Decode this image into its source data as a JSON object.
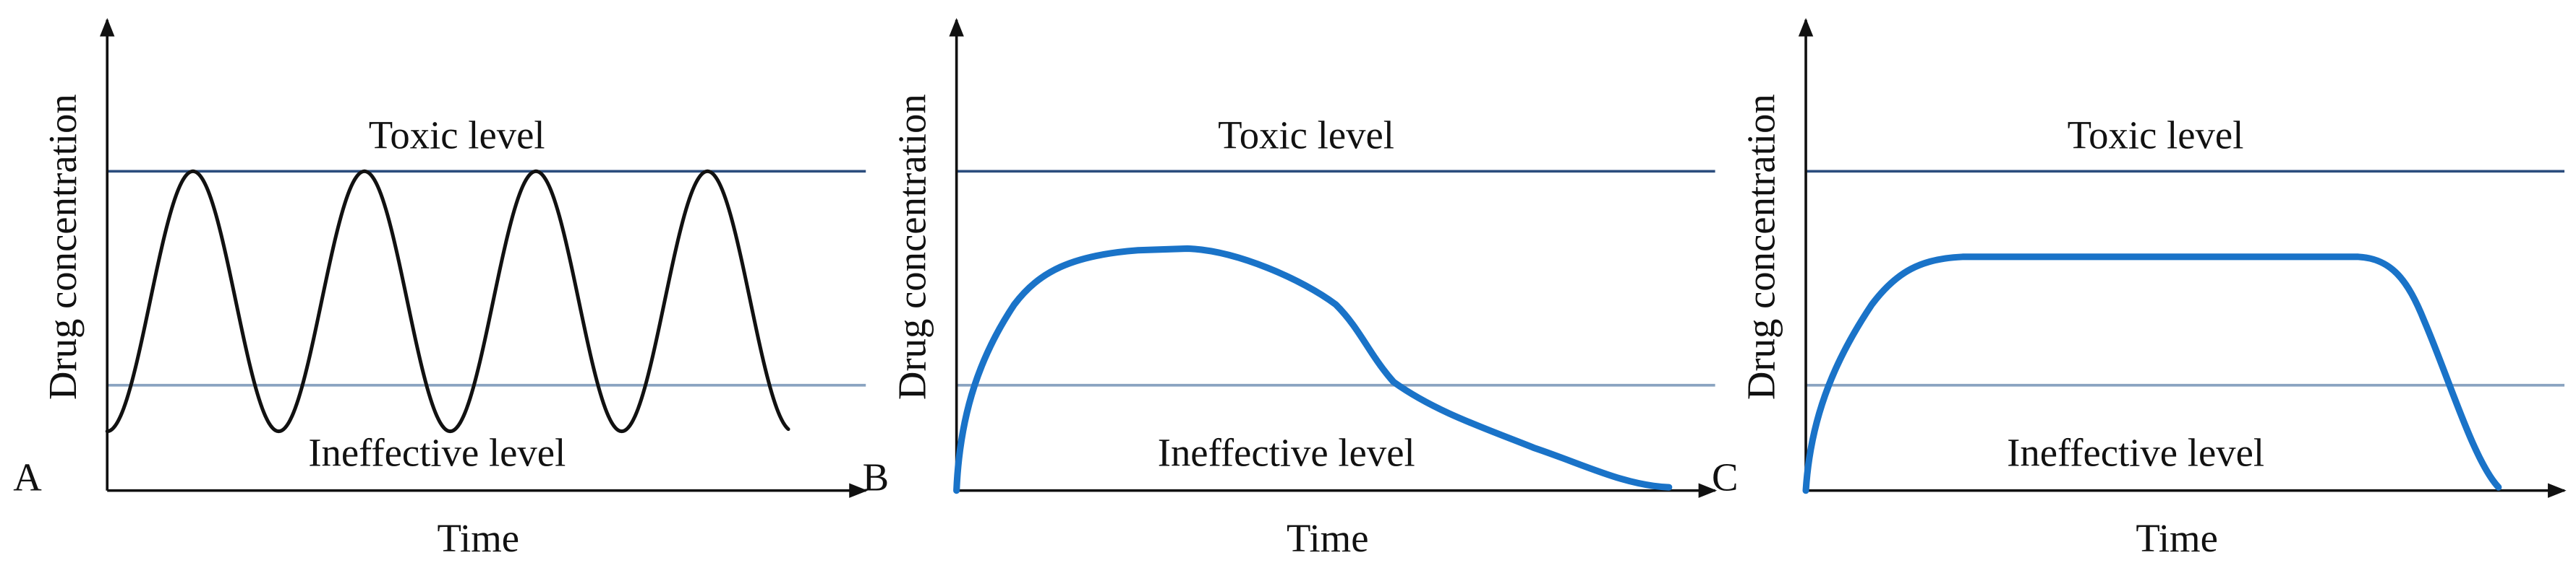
{
  "panels": [
    {
      "letter": "A",
      "y_label": "Drug concentration",
      "x_label": "Time",
      "toxic_label": "Toxic level",
      "ineffective_label": "Ineffective level"
    },
    {
      "letter": "B",
      "y_label": "Drug concentration",
      "x_label": "Time",
      "toxic_label": "Toxic level",
      "ineffective_label": "Ineffective level"
    },
    {
      "letter": "C",
      "y_label": "Drug concentration",
      "x_label": "Time",
      "toxic_label": "Toxic level",
      "ineffective_label": "Ineffective level"
    }
  ]
}
